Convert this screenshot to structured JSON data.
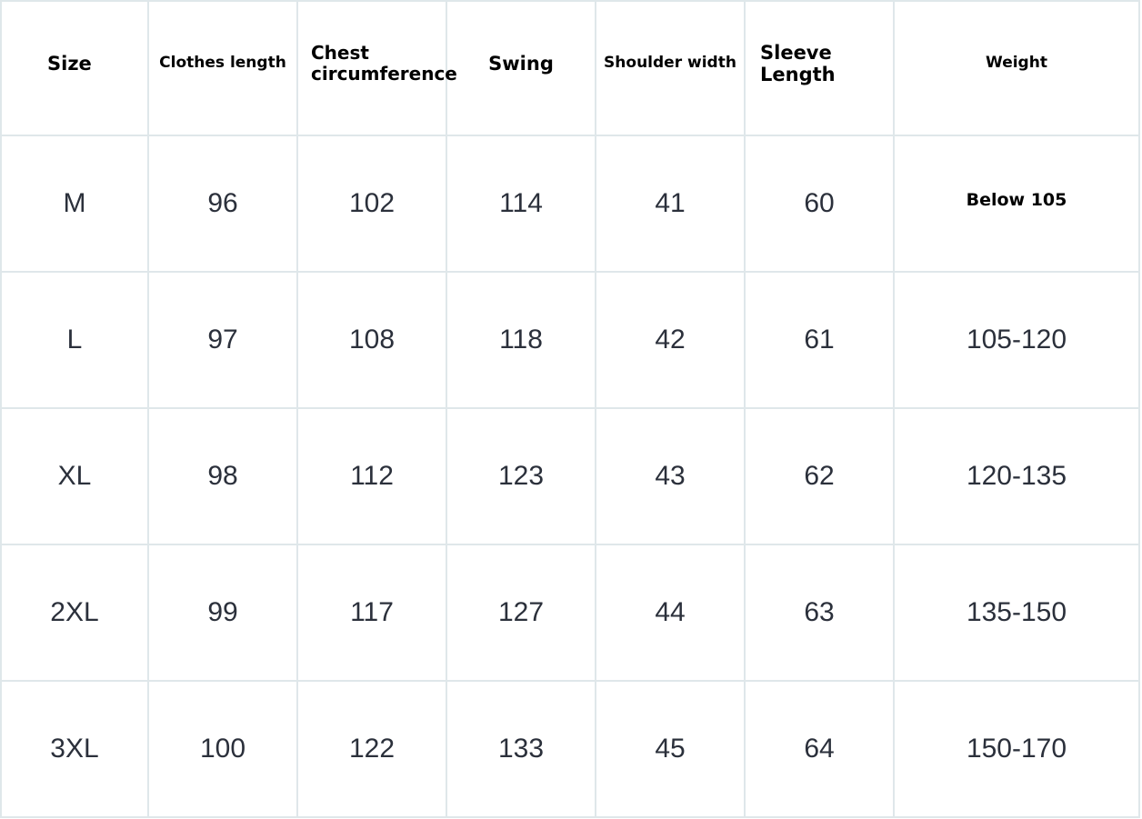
{
  "table": {
    "header": [
      "Size",
      "Clothes length",
      "Chest circumference",
      "Swing",
      "Shoulder width",
      "Sleeve Length",
      "Weight"
    ],
    "rows": [
      [
        "M",
        96,
        102,
        114,
        41,
        60,
        "Below 105"
      ],
      [
        "L",
        97,
        108,
        118,
        42,
        61,
        "105-120"
      ],
      [
        "XL",
        98,
        112,
        123,
        43,
        62,
        "120-135"
      ],
      [
        "2XL",
        99,
        117,
        127,
        44,
        63,
        "135-150"
      ],
      [
        "3XL",
        100,
        122,
        133,
        45,
        64,
        "150-170"
      ]
    ]
  }
}
